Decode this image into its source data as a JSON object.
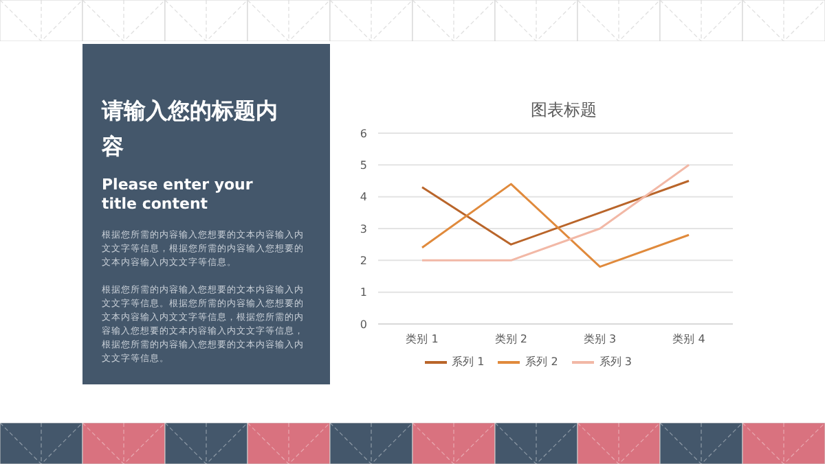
{
  "chart_data": [
    {
      "type": "other",
      "title": "请输入您的标题内容",
      "subtitle": "Please enter your title content",
      "annotations": [
        "根据您所需的内容输入您想要的文本内容输入内文文字等信息，根据您所需的内容输入您想要的文本内容输入内文文字等信息。",
        "根据您所需的内容输入您想要的文本内容输入内文文字等信息。根据您所需的内容输入您想要的文本内容输入内文文字等信息，根据您所需的内容输入您想要的文本内容输入内文文字等信息，根据您所需的内容输入您想要的文本内容输入内文文字等信息。"
      ]
    },
    {
      "type": "line",
      "title": "图表标题",
      "categories": [
        "类别 1",
        "类别 2",
        "类别 3",
        "类别 4"
      ],
      "series": [
        {
          "name": "系列 1",
          "color": "#b9652a",
          "values": [
            4.3,
            2.5,
            3.5,
            4.5
          ]
        },
        {
          "name": "系列 2",
          "color": "#e08a3c",
          "values": [
            2.4,
            4.4,
            1.8,
            2.8
          ]
        },
        {
          "name": "系列 3",
          "color": "#f2b8a6",
          "values": [
            2,
            2,
            3,
            5
          ]
        }
      ],
      "ylim": [
        0,
        6
      ],
      "yticks": [
        0,
        1,
        2,
        3,
        4,
        5,
        6
      ],
      "grid": "y",
      "legend": "bottom",
      "marker": "none",
      "line_style": "solid"
    }
  ]
}
